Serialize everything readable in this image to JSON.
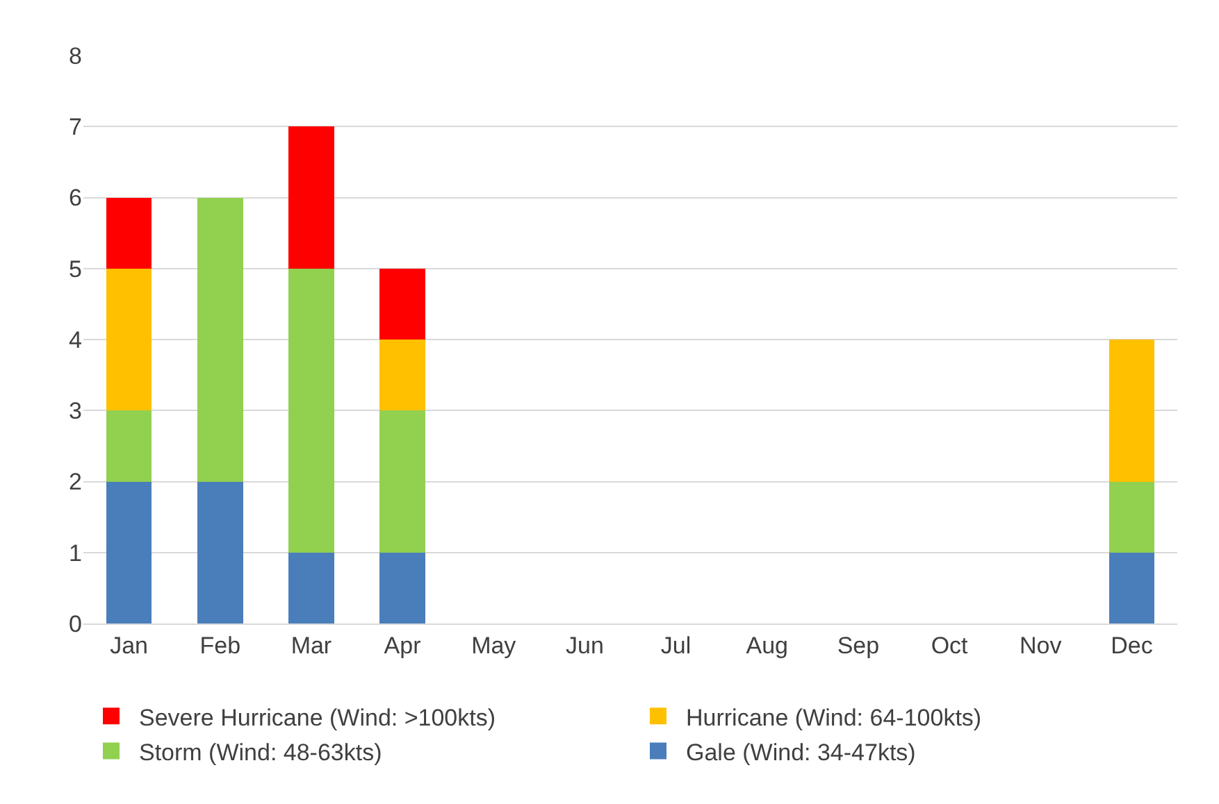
{
  "chart_data": {
    "type": "bar",
    "stacked": true,
    "categories": [
      "Jan",
      "Feb",
      "Mar",
      "Apr",
      "May",
      "Jun",
      "Jul",
      "Aug",
      "Sep",
      "Oct",
      "Nov",
      "Dec"
    ],
    "series": [
      {
        "name": "Gale (Wind: 34-47kts)",
        "color": "#4a7ebb",
        "values": [
          2,
          2,
          1,
          1,
          0,
          0,
          0,
          0,
          0,
          0,
          0,
          1
        ]
      },
      {
        "name": "Storm (Wind: 48-63kts)",
        "color": "#92d050",
        "values": [
          1,
          4,
          4,
          2,
          0,
          0,
          0,
          0,
          0,
          0,
          0,
          1
        ]
      },
      {
        "name": "Hurricane (Wind: 64-100kts)",
        "color": "#ffc000",
        "values": [
          2,
          0,
          0,
          1,
          0,
          0,
          0,
          0,
          0,
          0,
          0,
          2
        ]
      },
      {
        "name": "Severe Hurricane (Wind: >100kts)",
        "color": "#ff0000",
        "values": [
          1,
          0,
          2,
          1,
          0,
          0,
          0,
          0,
          0,
          0,
          0,
          0
        ]
      }
    ],
    "ylim": [
      0,
      8
    ],
    "yticks": [
      0,
      1,
      2,
      3,
      4,
      5,
      6,
      7,
      8
    ],
    "grid": "y",
    "legend": "bottom"
  }
}
